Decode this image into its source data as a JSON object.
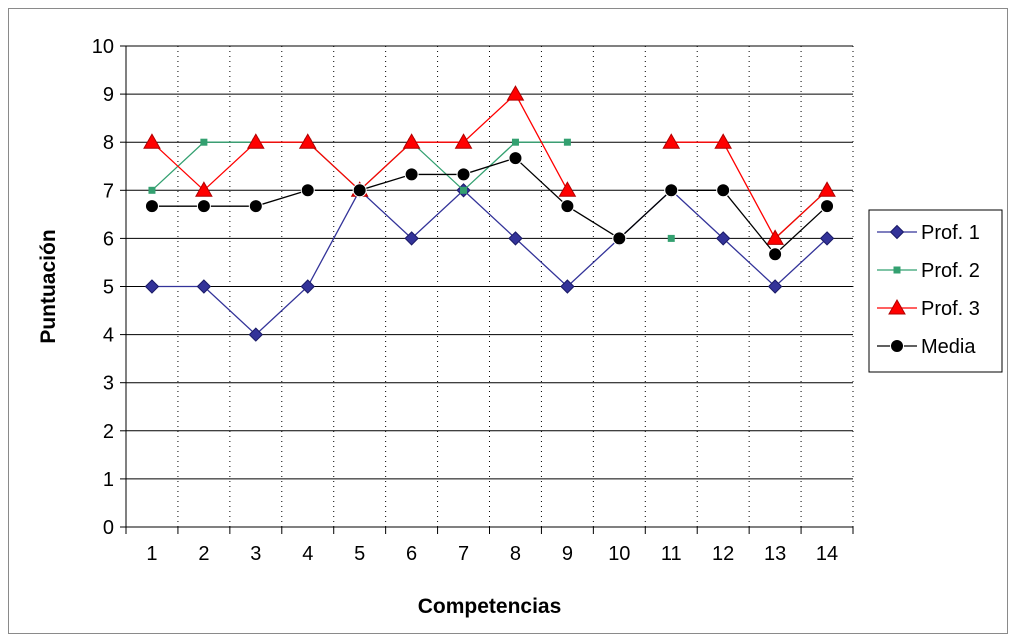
{
  "chart_data": {
    "type": "line",
    "title": "",
    "xlabel": "Competencias",
    "ylabel": "Puntuación",
    "categories": [
      "1",
      "2",
      "3",
      "4",
      "5",
      "6",
      "7",
      "8",
      "9",
      "10",
      "11",
      "12",
      "13",
      "14"
    ],
    "ylim": [
      0,
      10
    ],
    "yticks": [
      "0",
      "1",
      "2",
      "3",
      "4",
      "5",
      "6",
      "7",
      "8",
      "9",
      "10"
    ],
    "grid": "horizontal solid, vertical dotted",
    "legend_position": "right",
    "series": [
      {
        "name": "Prof. 1",
        "color": "#333399",
        "marker": "diamond",
        "values": [
          5,
          5,
          4,
          5,
          7,
          6,
          7,
          6,
          5,
          6,
          7,
          6,
          5,
          6
        ]
      },
      {
        "name": "Prof. 2",
        "color": "#33a070",
        "marker": "square",
        "values": [
          7,
          8,
          8,
          8,
          7,
          8,
          7,
          8,
          8,
          null,
          6,
          null,
          6,
          7
        ]
      },
      {
        "name": "Prof. 3",
        "color": "#ff0000",
        "marker": "triangle",
        "values": [
          8,
          7,
          8,
          8,
          7,
          8,
          8,
          9,
          7,
          null,
          8,
          8,
          6,
          7
        ]
      },
      {
        "name": "Media",
        "color": "#000000",
        "marker": "circle",
        "values": [
          6.67,
          6.67,
          6.67,
          7,
          7,
          7.33,
          7.33,
          7.67,
          6.67,
          6,
          7,
          7,
          5.67,
          6.67
        ]
      }
    ]
  }
}
